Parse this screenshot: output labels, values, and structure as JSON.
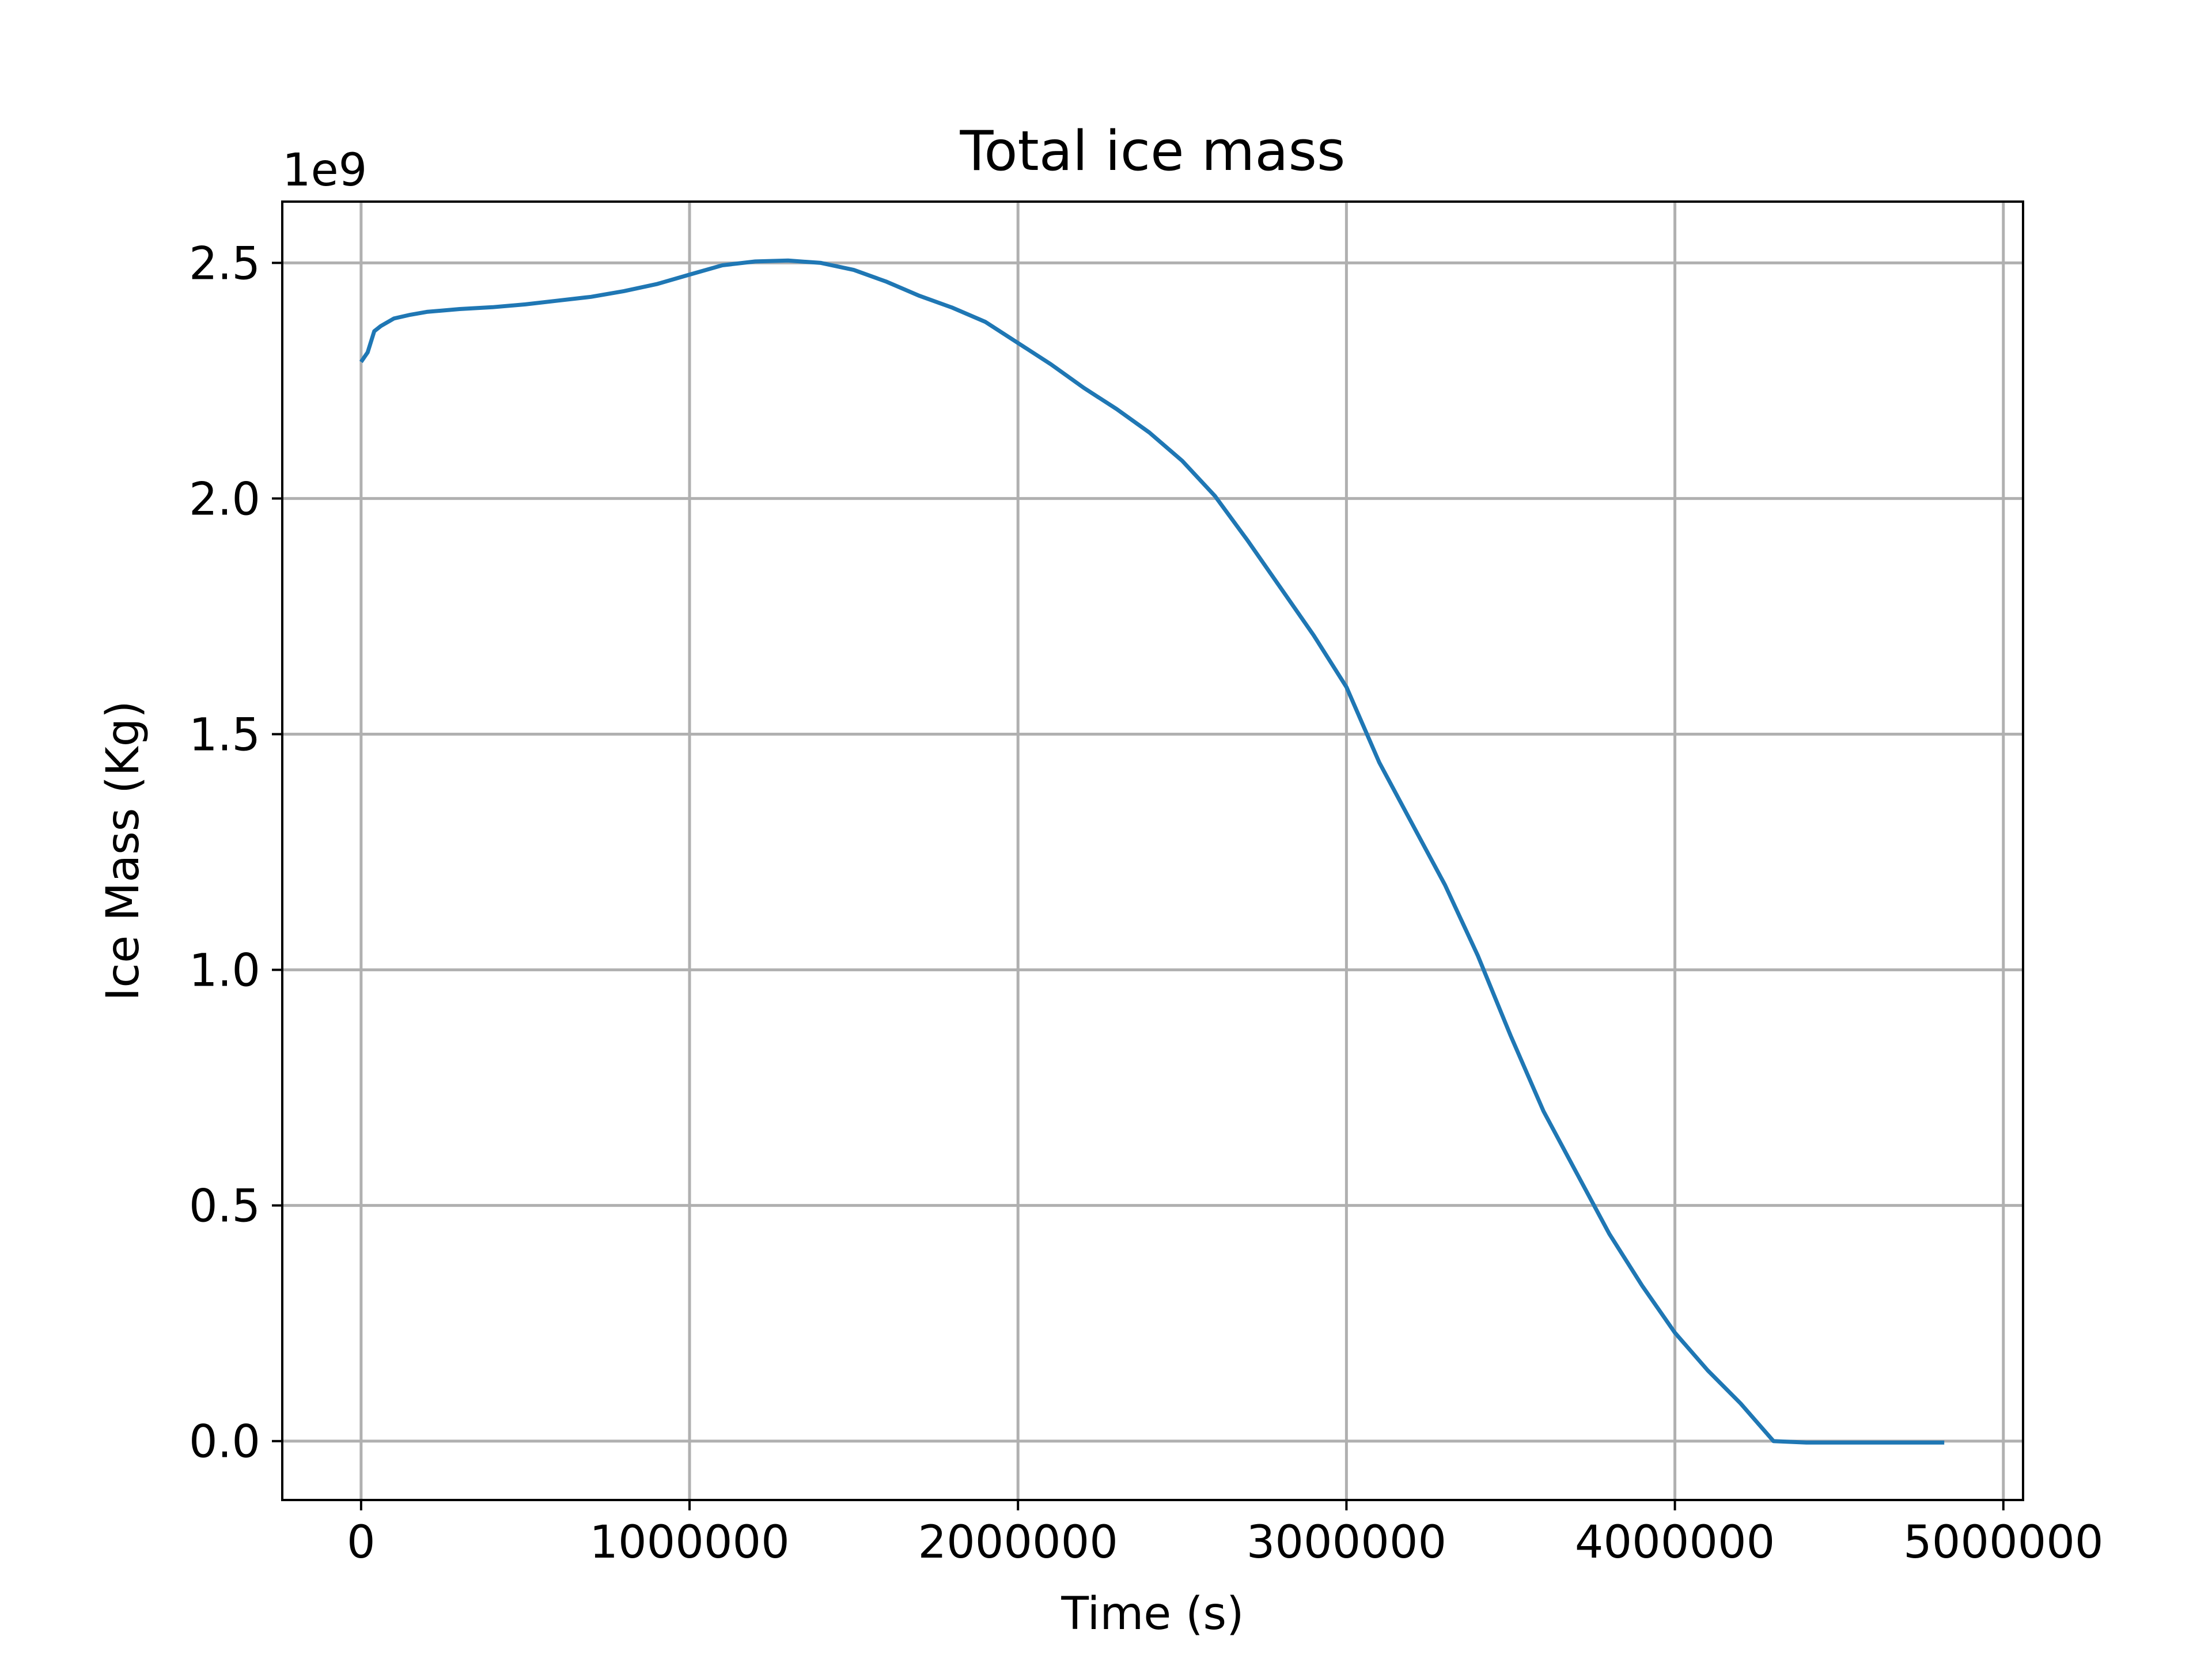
{
  "colors": {
    "series": "#1f77b4",
    "grid": "#b0b0b0",
    "axis": "#000000"
  },
  "chart_data": {
    "type": "line",
    "title": "Total ice mass",
    "xlabel": "Time (s)",
    "ylabel": "Ice Mass (Kg)",
    "y_offset_label": "1e9",
    "xlim": [
      -240000,
      5060000
    ],
    "ylim": [
      -0.125,
      2.63
    ],
    "y_scale_factor": 1000000000,
    "grid": true,
    "x_ticks": [
      {
        "value": 0,
        "label": "0"
      },
      {
        "value": 1000000,
        "label": "1000000"
      },
      {
        "value": 2000000,
        "label": "2000000"
      },
      {
        "value": 3000000,
        "label": "3000000"
      },
      {
        "value": 4000000,
        "label": "4000000"
      },
      {
        "value": 5000000,
        "label": "5000000"
      }
    ],
    "y_ticks": [
      {
        "value": 0.0,
        "label": "0.0"
      },
      {
        "value": 0.5,
        "label": "0.5"
      },
      {
        "value": 1.0,
        "label": "1.0"
      },
      {
        "value": 1.5,
        "label": "1.5"
      },
      {
        "value": 2.0,
        "label": "2.0"
      },
      {
        "value": 2.5,
        "label": "2.5"
      }
    ],
    "series": [
      {
        "x": [
          0,
          20000,
          40000,
          60000,
          100000,
          150000,
          200000,
          300000,
          400000,
          500000,
          600000,
          700000,
          800000,
          900000,
          1000000,
          1100000,
          1200000,
          1300000,
          1400000,
          1500000,
          1600000,
          1700000,
          1800000,
          1900000,
          2000000,
          2100000,
          2200000,
          2300000,
          2400000,
          2500000,
          2600000,
          2700000,
          2800000,
          2900000,
          3000000,
          3100000,
          3200000,
          3300000,
          3400000,
          3500000,
          3600000,
          3700000,
          3800000,
          3900000,
          4000000,
          4100000,
          4200000,
          4300000,
          4330000,
          4400000,
          4500000,
          4550000,
          4600000,
          4700000,
          4820000
        ],
        "y": [
          2.29,
          2.31,
          2.355,
          2.366,
          2.382,
          2.39,
          2.396,
          2.402,
          2.406,
          2.412,
          2.42,
          2.428,
          2.44,
          2.455,
          2.475,
          2.495,
          2.503,
          2.505,
          2.5,
          2.485,
          2.46,
          2.43,
          2.405,
          2.375,
          2.33,
          2.285,
          2.235,
          2.19,
          2.14,
          2.08,
          2.005,
          1.91,
          1.81,
          1.71,
          1.6,
          1.44,
          1.31,
          1.18,
          1.03,
          0.86,
          0.7,
          0.57,
          0.44,
          0.33,
          0.23,
          0.15,
          0.08,
          0.0,
          -0.001,
          -0.003,
          -0.003,
          -0.003,
          -0.003,
          -0.003,
          -0.003
        ]
      }
    ]
  }
}
